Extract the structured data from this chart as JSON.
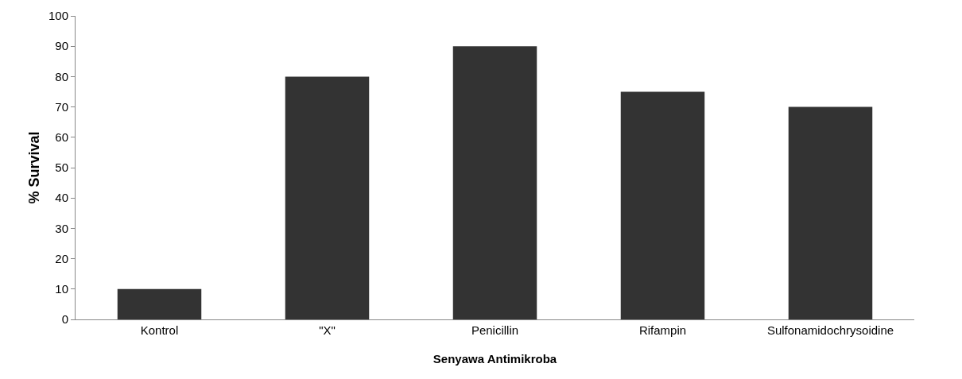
{
  "chart_data": {
    "type": "bar",
    "xlabel": "Senyawa Antimikroba",
    "ylabel": "% Survival",
    "categories": [
      "Kontrol",
      "\"X\"",
      "Penicillin",
      "Rifampin",
      "Sulfonamidochrysoidine"
    ],
    "values": [
      10,
      80,
      90,
      75,
      70
    ],
    "color": "#333333",
    "ylim": [
      0,
      100
    ],
    "yticks": [
      0,
      10,
      20,
      30,
      40,
      50,
      60,
      70,
      80,
      90,
      100
    ],
    "grid": false
  }
}
